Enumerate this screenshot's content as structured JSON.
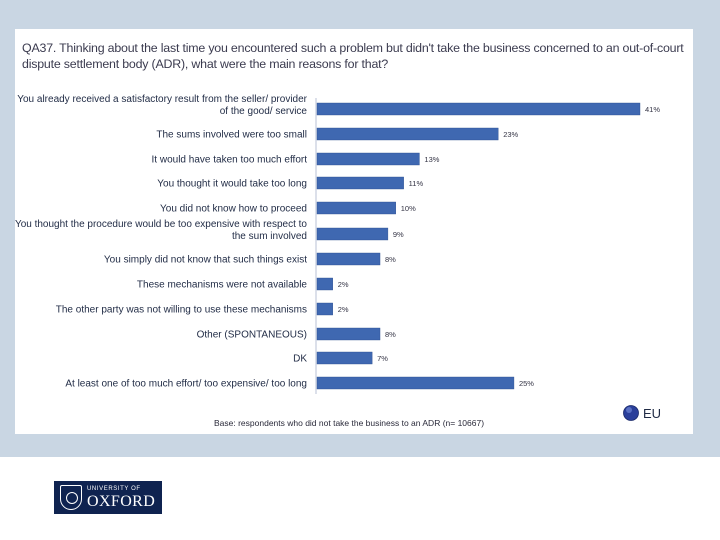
{
  "chart_data": {
    "type": "bar",
    "orientation": "horizontal",
    "title": "QA37. Thinking about the last time you encountered such a problem but didn't take the business concerned to an out-of-court dispute settlement body (ADR), what were the main reasons for that?",
    "categories": [
      [
        "You already received a satisfactory result from the seller/ provider",
        "of the good/ service"
      ],
      [
        "The sums involved were too small"
      ],
      [
        "It would have taken too much effort"
      ],
      [
        "You thought it would take too long"
      ],
      [
        "You did not know how to proceed"
      ],
      [
        "You thought the procedure would be too expensive with respect to",
        "the sum involved"
      ],
      [
        "You simply did not know that such things exist"
      ],
      [
        "These mechanisms were not available"
      ],
      [
        "The other party was not willing to use these mechanisms"
      ],
      [
        "Other (SPONTANEOUS)"
      ],
      [
        "DK"
      ],
      [
        "At least one of too much effort/ too expensive/ too long"
      ]
    ],
    "values": [
      41,
      23,
      13,
      11,
      10,
      9,
      8,
      2,
      2,
      8,
      7,
      25
    ],
    "value_labels": [
      "41%",
      "23%",
      "13%",
      "11%",
      "10%",
      "9%",
      "8%",
      "2%",
      "2%",
      "8%",
      "7%",
      "25%"
    ],
    "xlim": [
      0,
      41
    ],
    "series": [
      {
        "name": "EU",
        "color": "#3f68b1"
      }
    ],
    "legend": {
      "label": "EU",
      "position": "bottom-right"
    },
    "base_note": "Base: respondents who did not take the business to an ADR (n= 10667)",
    "grid": false
  },
  "footer": {
    "logo_small": "UNIVERSITY OF",
    "logo_big": "OXFORD"
  }
}
